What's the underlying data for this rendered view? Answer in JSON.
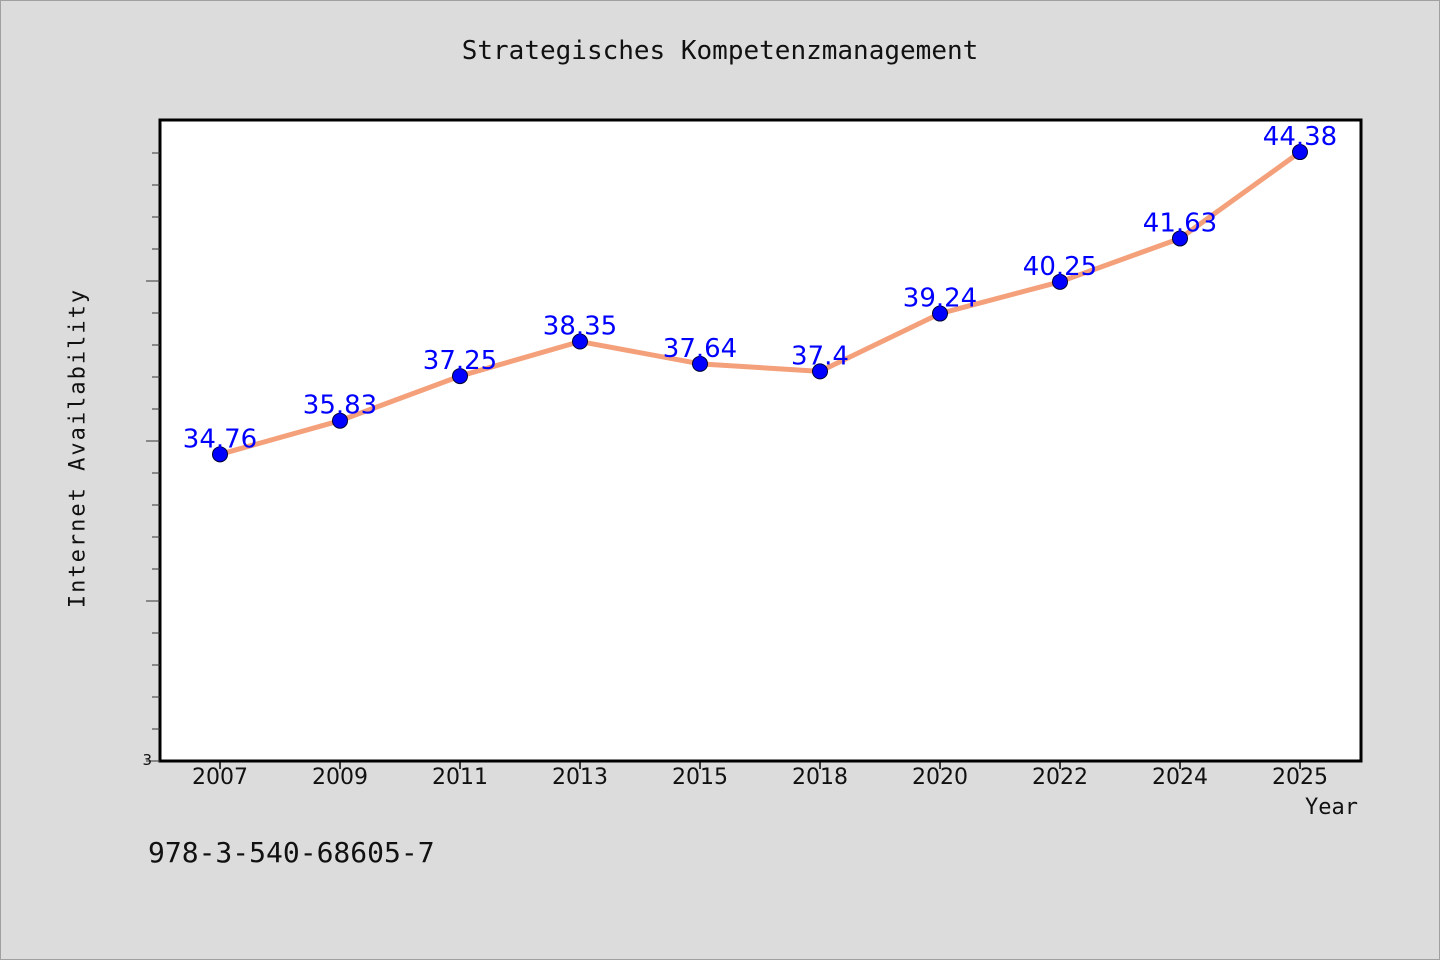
{
  "page": {
    "title": "Strategisches Kompetenzmanagement",
    "footer_code": "978-3-540-68605-7"
  },
  "colors": {
    "background": "#dcdcdc",
    "plot_background": "#ffffff",
    "line": "#f4a07a",
    "marker": "#0000ff",
    "label": "#0000ff"
  },
  "chart_data": {
    "type": "line",
    "title": "Strategisches Kompetenzmanagement",
    "xlabel": "Year",
    "ylabel": "Internet Availability",
    "categories": [
      "2007",
      "2009",
      "2011",
      "2013",
      "2015",
      "2018",
      "2020",
      "2022",
      "2024",
      "2025"
    ],
    "series": [
      {
        "values": [
          34.76,
          35.83,
          37.25,
          38.35,
          37.64,
          37.4,
          39.24,
          40.25,
          41.63,
          44.38
        ],
        "data_labels": [
          "34.76",
          "35.83",
          "37.25",
          "38.35",
          "37.64",
          "37.4",
          "39.24",
          "40.25",
          "41.63",
          "44.38"
        ]
      }
    ],
    "y_tick_label": "3",
    "ylim": [
      25,
      45.4
    ],
    "grid": false,
    "legend": "none"
  }
}
